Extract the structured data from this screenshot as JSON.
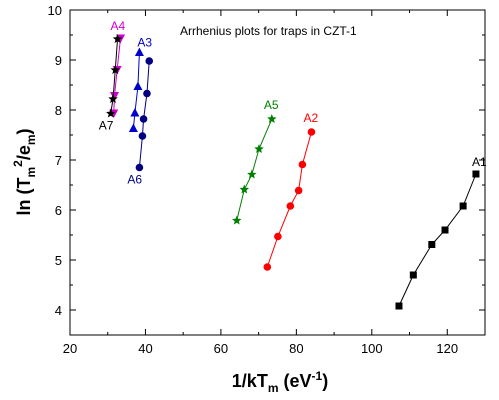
{
  "chart_data": {
    "type": "scatter",
    "title": "Arrhenius plots for traps in CZT-1",
    "xlabel": {
      "main": "1/kT",
      "sub": "m",
      "unit_open": " (eV",
      "unit_sup": "-1",
      "unit_close": ")"
    },
    "ylabel": {
      "open": "ln (T",
      "sub1": "m",
      "sup": "2",
      "mid": "/e",
      "sub2": "m",
      "close": ")"
    },
    "xlim": [
      20,
      130
    ],
    "ylim": [
      3.5,
      10
    ],
    "xticks": [
      20,
      40,
      60,
      80,
      100,
      120
    ],
    "yticks": [
      4,
      5,
      6,
      7,
      8,
      9,
      10
    ],
    "grid": false,
    "series": [
      {
        "name": "A1",
        "color": "#000000",
        "marker": "square",
        "x": [
          107.2,
          111.0,
          115.9,
          119.4,
          124.2,
          127.6
        ],
        "y": [
          4.08,
          4.7,
          5.31,
          5.6,
          6.08,
          6.72
        ]
      },
      {
        "name": "A2",
        "color": "#ff0000",
        "marker": "circle",
        "x": [
          72.3,
          75.1,
          78.4,
          80.6,
          81.6,
          84.0
        ],
        "y": [
          4.86,
          5.47,
          6.08,
          6.39,
          6.91,
          7.56
        ]
      },
      {
        "name": "A5",
        "color": "#008000",
        "marker": "star",
        "x": [
          64.2,
          66.2,
          68.2,
          70.1,
          73.5
        ],
        "y": [
          5.79,
          6.41,
          6.71,
          7.22,
          7.82
        ]
      },
      {
        "name": "A3",
        "color": "#0000cd",
        "marker": "triangle-up",
        "x": [
          36.8,
          37.2,
          38.0,
          38.4
        ],
        "y": [
          7.63,
          7.94,
          8.47,
          9.15
        ]
      },
      {
        "name": "A6",
        "color": "#000080",
        "marker": "circle",
        "x": [
          38.4,
          39.2,
          39.5,
          40.4,
          41.0
        ],
        "y": [
          6.85,
          7.48,
          7.82,
          8.33,
          8.98
        ]
      },
      {
        "name": "A4",
        "color": "#cc00cc",
        "marker": "triangle-down",
        "x": [
          31.6,
          31.8,
          32.5,
          33.4
        ],
        "y": [
          7.94,
          8.29,
          8.81,
          9.44
        ]
      },
      {
        "name": "A7",
        "color": "#000000",
        "marker": "star",
        "x": [
          30.8,
          31.4,
          32.0,
          32.6
        ],
        "y": [
          7.93,
          8.22,
          8.8,
          9.42
        ]
      }
    ]
  }
}
